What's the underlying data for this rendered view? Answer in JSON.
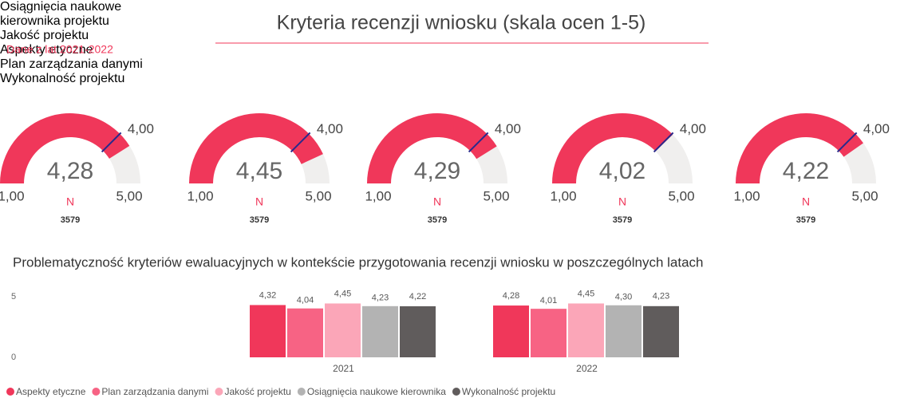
{
  "title": "Kryteria recenzji wniosku (skala ocen 1-5)",
  "subtitle": "Dane z lat 2021-2022",
  "chart_data": [
    {
      "type": "gauge",
      "title": "Osiągnięcia naukowe kierownika projektu",
      "value": 4.28,
      "value_label": "4,28",
      "target": 4,
      "target_label": "4,00",
      "min": 1,
      "min_label": "1,00",
      "max": 5,
      "max_label": "5,00",
      "n_label": "N",
      "n": 3579,
      "color": "#f0375a"
    },
    {
      "type": "gauge",
      "title": "Jakość projektu",
      "value": 4.45,
      "value_label": "4,45",
      "target": 4,
      "target_label": "4,00",
      "min": 1,
      "min_label": "1,00",
      "max": 5,
      "max_label": "5,00",
      "n_label": "N",
      "n": 3579,
      "color": "#f0375a"
    },
    {
      "type": "gauge",
      "title": "Aspekty etyczne",
      "value": 4.29,
      "value_label": "4,29",
      "target": 4,
      "target_label": "4,00",
      "min": 1,
      "min_label": "1,00",
      "max": 5,
      "max_label": "5,00",
      "n_label": "N",
      "n": 3579,
      "color": "#f0375a"
    },
    {
      "type": "gauge",
      "title": "Plan zarządzania danymi",
      "value": 4.02,
      "value_label": "4,02",
      "target": 4,
      "target_label": "4,00",
      "min": 1,
      "min_label": "1,00",
      "max": 5,
      "max_label": "5,00",
      "n_label": "N",
      "n": 3579,
      "color": "#f0375a"
    },
    {
      "type": "gauge",
      "title": "Wykonalność projektu",
      "value": 4.22,
      "value_label": "4,22",
      "target": 4,
      "target_label": "4,00",
      "min": 1,
      "min_label": "1,00",
      "max": 5,
      "max_label": "5,00",
      "n_label": "N",
      "n": 3579,
      "color": "#f0375a"
    },
    {
      "type": "bar",
      "title": "Problematyczność kryteriów ewaluacyjnych w kontekście przygotowania recenzji wniosku w poszczególnych latach",
      "categories": [
        "2021",
        "2022"
      ],
      "series": [
        {
          "name": "Aspekty etyczne",
          "color": "#f0375a",
          "values": [
            4.32,
            4.28
          ],
          "value_labels": [
            "4,32",
            "4,28"
          ]
        },
        {
          "name": "Plan zarządzania danymi",
          "color": "#f76384",
          "values": [
            4.04,
            4.01
          ],
          "value_labels": [
            "4,04",
            "4,01"
          ]
        },
        {
          "name": "Jakość projektu",
          "color": "#fba6b8",
          "values": [
            4.45,
            4.45
          ],
          "value_labels": [
            "4,45",
            "4,45"
          ]
        },
        {
          "name": "Osiągnięcia naukowe kierownika",
          "color": "#b3b3b3",
          "values": [
            4.23,
            4.3
          ],
          "value_labels": [
            "4,23",
            "4,30"
          ]
        },
        {
          "name": "Wykonalność projektu",
          "color": "#605c5c",
          "values": [
            4.22,
            4.23
          ],
          "value_labels": [
            "4,22",
            "4,23"
          ]
        }
      ],
      "ylim": [
        0,
        5.8
      ],
      "yticks": [
        0,
        5
      ]
    }
  ]
}
